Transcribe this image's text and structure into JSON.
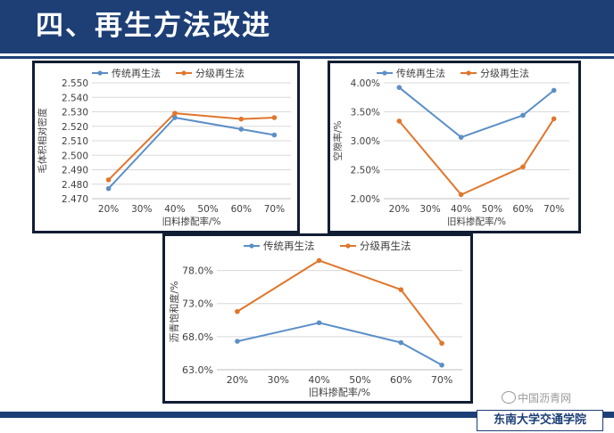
{
  "header": {
    "title": "四、再生方法改进"
  },
  "watermark": "中国沥青网",
  "footer": {
    "school": "东南大学交通学院"
  },
  "colors": {
    "traditional": "#5b8fc7",
    "upgraded": "#e0762d",
    "header": "#1d3f76",
    "grid": "#d9d9d9"
  },
  "chart_data": [
    {
      "type": "line",
      "legend": [
        "传统再生法",
        "分级再生法"
      ],
      "xlabel": "旧料掺配率/%",
      "ylabel": "毛体积相对密度",
      "categories": [
        "20%",
        "30%",
        "40%",
        "50%",
        "60%",
        "70%"
      ],
      "yticks": [
        "2.470",
        "2.480",
        "2.490",
        "2.500",
        "2.510",
        "2.520",
        "2.530",
        "2.540",
        "2.550"
      ],
      "ylim": [
        2.47,
        2.55
      ],
      "decimals": 3,
      "x": [
        20,
        40,
        60,
        70
      ],
      "series": [
        {
          "name": "传统再生法",
          "values": [
            2.477,
            2.526,
            2.518,
            2.514
          ]
        },
        {
          "name": "分级再生法",
          "values": [
            2.483,
            2.529,
            2.525,
            2.526
          ]
        }
      ]
    },
    {
      "type": "line",
      "legend": [
        "传统再生法",
        "分级再生法"
      ],
      "xlabel": "旧料掺配率/%",
      "ylabel": "空隙率/%",
      "categories": [
        "20%",
        "30%",
        "40%",
        "50%",
        "60%",
        "70%"
      ],
      "yticks": [
        "2.00%",
        "2.50%",
        "3.00%",
        "3.50%",
        "4.00%"
      ],
      "ylim": [
        2.0,
        4.0
      ],
      "decimals": 2,
      "x": [
        20,
        40,
        60,
        70
      ],
      "series": [
        {
          "name": "传统再生法",
          "values": [
            3.92,
            3.06,
            3.44,
            3.87
          ]
        },
        {
          "name": "分级再生法",
          "values": [
            3.34,
            2.07,
            2.55,
            3.38
          ]
        }
      ]
    },
    {
      "type": "line",
      "legend": [
        "传统再生法",
        "分级再生法"
      ],
      "xlabel": "旧料掺配率/%",
      "ylabel": "沥青饱和度/%",
      "categories": [
        "20%",
        "30%",
        "40%",
        "50%",
        "60%",
        "70%"
      ],
      "yticks": [
        "63.0%",
        "68.0%",
        "73.0%",
        "78.0%"
      ],
      "ylim": [
        63.0,
        80.5
      ],
      "decimals": 1,
      "x": [
        20,
        40,
        60,
        70
      ],
      "series": [
        {
          "name": "传统再生法",
          "values": [
            67.3,
            70.1,
            67.1,
            63.7
          ]
        },
        {
          "name": "分级再生法",
          "values": [
            71.8,
            79.5,
            75.1,
            67.0
          ]
        }
      ]
    }
  ]
}
